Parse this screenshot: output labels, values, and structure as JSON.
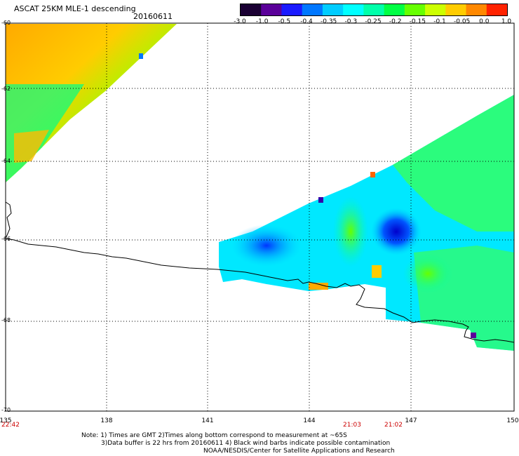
{
  "header": {
    "title": "ASCAT 25KM MLE-1 descending",
    "date": "20160611"
  },
  "colorbar": {
    "colors": [
      "#1a0033",
      "#5a0099",
      "#1a1aff",
      "#0077ff",
      "#00ccff",
      "#00ffff",
      "#00ffaa",
      "#00ff44",
      "#66ff00",
      "#ccff00",
      "#ffcc00",
      "#ff8800",
      "#ff2200"
    ],
    "tick_labels": [
      "-3.0",
      "-1.0",
      "-0.5",
      "-0.4",
      "-0.35",
      "-0.3",
      "-0.25",
      "-0.2",
      "-0.15",
      "-0.1",
      "-0.05",
      "0.0",
      "1.0"
    ]
  },
  "map": {
    "lat_labels": [
      "-60",
      "-62",
      "-64",
      "-66",
      "-68",
      "-70"
    ],
    "lon_labels": [
      "135",
      "138",
      "141",
      "144",
      "147",
      "150"
    ],
    "time_labels": [
      "22:42",
      "21:03",
      "21:02"
    ]
  },
  "notes": [
    "Note: 1) Times are GMT 2)Times along bottom correspond to measurement at ~65S",
    "3)Data buffer is 22 hrs from 20160611 4) Black wind barbs indicate possible contamination",
    "NOAA/NESDIS/Center for Satellite Applications and Research"
  ]
}
